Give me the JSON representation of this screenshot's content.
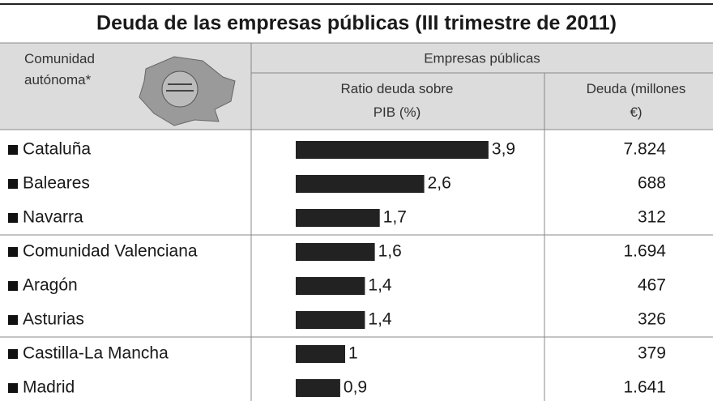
{
  "header": {
    "title": "Deuda de las empresas públicas (III trimestre de 2011)"
  },
  "table": {
    "columns": {
      "region": "Comunidad autónoma*",
      "group": "Empresas públicas",
      "ratio": "Ratio deuda sobre PIB (%)",
      "debt": "Deuda (millones €)"
    },
    "rows": [
      {
        "name": "Cataluña",
        "ratio": 3.9,
        "ratio_label": "3,9",
        "debt": "7.824"
      },
      {
        "name": "Baleares",
        "ratio": 2.6,
        "ratio_label": "2,6",
        "debt": "688"
      },
      {
        "name": "Navarra",
        "ratio": 1.7,
        "ratio_label": "1,7",
        "debt": "312"
      },
      {
        "name": "Comunidad Valenciana",
        "ratio": 1.6,
        "ratio_label": "1,6",
        "debt": "1.694"
      },
      {
        "name": "Aragón",
        "ratio": 1.4,
        "ratio_label": "1,4",
        "debt": "467"
      },
      {
        "name": "Asturias",
        "ratio": 1.4,
        "ratio_label": "1,4",
        "debt": "326"
      },
      {
        "name": "Castilla-La Mancha",
        "ratio": 1,
        "ratio_label": "1",
        "debt": "379"
      },
      {
        "name": "Madrid",
        "ratio": 0.9,
        "ratio_label": "0,9",
        "debt": "1.641"
      }
    ]
  }
}
